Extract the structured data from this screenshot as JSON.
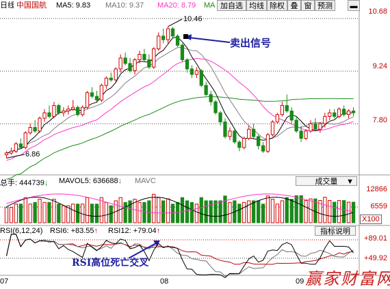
{
  "header": {
    "period": "日线",
    "stock": "中国国航",
    "ma5": "MA5: 9.83",
    "ma10": "MA10: 9.37",
    "ma20": "MA20: 8.79",
    "ma60": "MA",
    "toolbar": [
      "加自选",
      "均线",
      "除权",
      "叠",
      "窗",
      "预测"
    ],
    "minimize": "▬"
  },
  "price_axis": [
    "10.68",
    "9.24",
    "7.80"
  ],
  "labels": {
    "high": "10.46",
    "low": "6.86"
  },
  "annotations": {
    "sell": "卖出信号",
    "rsi": "RSI高位死亡交叉",
    "watermark": "赢家财富网"
  },
  "volume": {
    "total": "总手: 444739",
    "total_arrow": "↓",
    "mavol5": "MAVOL5: 636688",
    "mavol5_arrow": "↓",
    "mavol10": "MAVO",
    "selector": "成交量",
    "selector_arrow": "▼",
    "axis": [
      "12866",
      "6559",
      "X100"
    ]
  },
  "rsi": {
    "title": "RSI(6,12,24)",
    "rsi6": "RSI6: +83.55",
    "rsi6_arrow": "↑",
    "rsi12": "RSI12: +79.04",
    "rsi12_arrow": "↑",
    "help": "指标说明",
    "axis": [
      "+89.01",
      "+49.92"
    ]
  },
  "x_axis": [
    "07",
    "08",
    "09"
  ],
  "colors": {
    "up": "#d40000",
    "down": "#1a8a1a",
    "ma5": "#000000",
    "ma10": "#808080",
    "ma20": "#ff33cc",
    "ma60": "#1a8a1a",
    "arrow": "#1f1f9f"
  },
  "chart_data": {
    "type": "candlestick",
    "title": "中国国航",
    "ohlc": [
      [
        6.95,
        7.05,
        6.86,
        7.0
      ],
      [
        7.0,
        7.15,
        6.95,
        7.05
      ],
      [
        7.05,
        7.3,
        7.0,
        7.25
      ],
      [
        7.25,
        7.4,
        7.1,
        7.15
      ],
      [
        7.15,
        7.6,
        7.1,
        7.55
      ],
      [
        7.55,
        7.8,
        7.5,
        7.7
      ],
      [
        7.7,
        7.9,
        7.55,
        7.6
      ],
      [
        7.6,
        8.0,
        7.55,
        7.95
      ],
      [
        7.95,
        8.2,
        7.85,
        8.1
      ],
      [
        8.1,
        8.3,
        7.95,
        8.0
      ],
      [
        8.0,
        8.4,
        7.95,
        8.3
      ],
      [
        8.3,
        8.35,
        8.05,
        8.1
      ],
      [
        8.1,
        8.25,
        8.0,
        8.15
      ],
      [
        8.15,
        8.3,
        8.05,
        8.2
      ],
      [
        8.2,
        8.45,
        8.15,
        8.25
      ],
      [
        8.25,
        8.3,
        8.0,
        8.05
      ],
      [
        8.05,
        8.3,
        8.0,
        8.25
      ],
      [
        8.25,
        8.7,
        8.2,
        8.65
      ],
      [
        8.65,
        8.8,
        8.5,
        8.55
      ],
      [
        8.55,
        8.7,
        8.4,
        8.45
      ],
      [
        8.45,
        8.9,
        8.4,
        8.85
      ],
      [
        8.85,
        9.1,
        8.75,
        9.05
      ],
      [
        9.05,
        9.2,
        8.95,
        9.0
      ],
      [
        9.0,
        9.35,
        8.95,
        9.3
      ],
      [
        9.3,
        9.7,
        9.2,
        9.6
      ],
      [
        9.6,
        9.75,
        9.4,
        9.45
      ],
      [
        9.45,
        9.6,
        9.2,
        9.25
      ],
      [
        9.25,
        9.6,
        9.15,
        9.55
      ],
      [
        9.55,
        9.8,
        9.45,
        9.7
      ],
      [
        9.7,
        9.85,
        9.5,
        9.55
      ],
      [
        9.55,
        9.7,
        9.3,
        9.35
      ],
      [
        9.35,
        9.9,
        9.3,
        9.85
      ],
      [
        9.85,
        10.3,
        9.8,
        10.2
      ],
      [
        10.2,
        10.4,
        10.0,
        10.1
      ],
      [
        10.1,
        10.46,
        10.0,
        10.4
      ],
      [
        10.4,
        10.45,
        10.15,
        10.2
      ],
      [
        10.2,
        10.25,
        9.9,
        9.95
      ],
      [
        9.95,
        10.0,
        9.5,
        9.55
      ],
      [
        9.55,
        9.6,
        9.2,
        9.3
      ],
      [
        9.3,
        9.4,
        9.05,
        9.15
      ],
      [
        9.15,
        9.35,
        9.05,
        9.25
      ],
      [
        9.25,
        9.3,
        8.8,
        8.85
      ],
      [
        8.85,
        8.95,
        8.55,
        8.6
      ],
      [
        8.6,
        8.7,
        8.3,
        8.4
      ],
      [
        8.4,
        8.45,
        8.05,
        8.1
      ],
      [
        8.1,
        8.15,
        7.75,
        7.85
      ],
      [
        7.85,
        7.95,
        7.4,
        7.45
      ],
      [
        7.45,
        7.7,
        7.35,
        7.6
      ],
      [
        7.6,
        7.65,
        7.25,
        7.3
      ],
      [
        7.3,
        7.35,
        7.05,
        7.15
      ],
      [
        7.15,
        7.45,
        7.1,
        7.4
      ],
      [
        7.4,
        7.75,
        7.35,
        7.65
      ],
      [
        7.65,
        7.8,
        7.4,
        7.45
      ],
      [
        7.45,
        7.5,
        7.1,
        7.2
      ],
      [
        7.2,
        7.3,
        7.0,
        7.05
      ],
      [
        7.05,
        7.55,
        7.0,
        7.5
      ],
      [
        7.5,
        7.9,
        7.45,
        7.85
      ],
      [
        7.85,
        8.1,
        7.8,
        8.05
      ],
      [
        8.05,
        8.4,
        8.0,
        8.3
      ],
      [
        8.3,
        8.6,
        8.1,
        8.15
      ],
      [
        8.15,
        8.25,
        7.8,
        7.9
      ],
      [
        7.9,
        8.0,
        7.55,
        7.6
      ],
      [
        7.6,
        7.75,
        7.3,
        7.4
      ],
      [
        7.4,
        7.65,
        7.35,
        7.6
      ],
      [
        7.6,
        7.9,
        7.55,
        7.8
      ],
      [
        7.8,
        7.95,
        7.6,
        7.65
      ],
      [
        7.65,
        7.85,
        7.55,
        7.8
      ],
      [
        7.8,
        8.1,
        7.7,
        8.0
      ],
      [
        8.0,
        8.2,
        7.9,
        8.1
      ],
      [
        8.1,
        8.2,
        7.95,
        8.0
      ],
      [
        8.0,
        8.25,
        7.95,
        8.2
      ],
      [
        8.2,
        8.3,
        8.0,
        8.05
      ],
      [
        8.05,
        8.2,
        7.95,
        8.15
      ],
      [
        8.15,
        8.25,
        8.0,
        8.1
      ]
    ],
    "ma_lines": [
      "MA5",
      "MA10",
      "MA20",
      "MA60"
    ],
    "y_axis_labels": [
      10.68,
      9.24,
      7.8
    ],
    "x_axis_labels": [
      "07",
      "08",
      "09"
    ]
  }
}
